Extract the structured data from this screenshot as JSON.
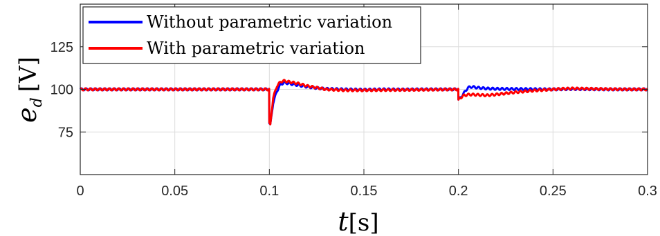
{
  "chart_data": {
    "type": "line",
    "xlabel": {
      "var": "t",
      "unit": "[s]"
    },
    "ylabel": {
      "var": "e",
      "sub": "d",
      "unit": "[V]"
    },
    "xlim": [
      0,
      0.3
    ],
    "ylim": [
      50,
      150
    ],
    "xticks": [
      "0",
      "0.05",
      "0.1",
      "0.15",
      "0.2",
      "0.25",
      "0.3"
    ],
    "xtick_values": [
      0,
      0.05,
      0.1,
      0.15,
      0.2,
      0.25,
      0.3
    ],
    "yticks": [
      "75",
      "100",
      "125"
    ],
    "ytick_values": [
      75,
      100,
      125
    ],
    "grid": true,
    "legend_position": "top-left",
    "ripple_amplitude": 0.6,
    "series": [
      {
        "name": "Without parametric variation",
        "color": "#0000ff",
        "x": [
          0,
          0.0999,
          0.1,
          0.1005,
          0.102,
          0.104,
          0.106,
          0.108,
          0.11,
          0.115,
          0.12,
          0.125,
          0.13,
          0.14,
          0.15,
          0.16,
          0.17,
          0.18,
          0.19,
          0.1999,
          0.2,
          0.201,
          0.203,
          0.205,
          0.207,
          0.21,
          0.215,
          0.22,
          0.23,
          0.24,
          0.25,
          0.26,
          0.27,
          0.28,
          0.29,
          0.3
        ],
        "y": [
          100,
          100,
          80,
          79,
          92,
          99,
          103,
          104,
          103.5,
          102.5,
          101.5,
          100.8,
          100.3,
          100,
          99.8,
          100,
          99.9,
          100,
          100,
          100,
          94,
          95,
          98,
          101,
          101.5,
          101,
          100.5,
          100.3,
          100.2,
          100.1,
          100,
          100.2,
          100.1,
          100,
          100,
          100
        ]
      },
      {
        "name": "With parametric variation",
        "color": "#ff0000",
        "x": [
          0,
          0.0999,
          0.1,
          0.1005,
          0.102,
          0.104,
          0.106,
          0.108,
          0.11,
          0.115,
          0.12,
          0.125,
          0.13,
          0.14,
          0.15,
          0.16,
          0.17,
          0.18,
          0.19,
          0.1999,
          0.2,
          0.201,
          0.203,
          0.206,
          0.21,
          0.215,
          0.22,
          0.23,
          0.24,
          0.25,
          0.255,
          0.26,
          0.27,
          0.28,
          0.29,
          0.3
        ],
        "y": [
          100,
          100,
          80,
          79,
          95,
          102,
          104.5,
          105,
          104.5,
          103.5,
          102,
          101,
          100,
          99.5,
          99.5,
          99.6,
          99.7,
          99.8,
          99.9,
          100,
          93.5,
          95,
          96.5,
          97,
          96.8,
          96.5,
          97,
          98.3,
          99.3,
          100,
          100.3,
          100.5,
          100.3,
          100.1,
          100,
          100
        ]
      }
    ]
  }
}
